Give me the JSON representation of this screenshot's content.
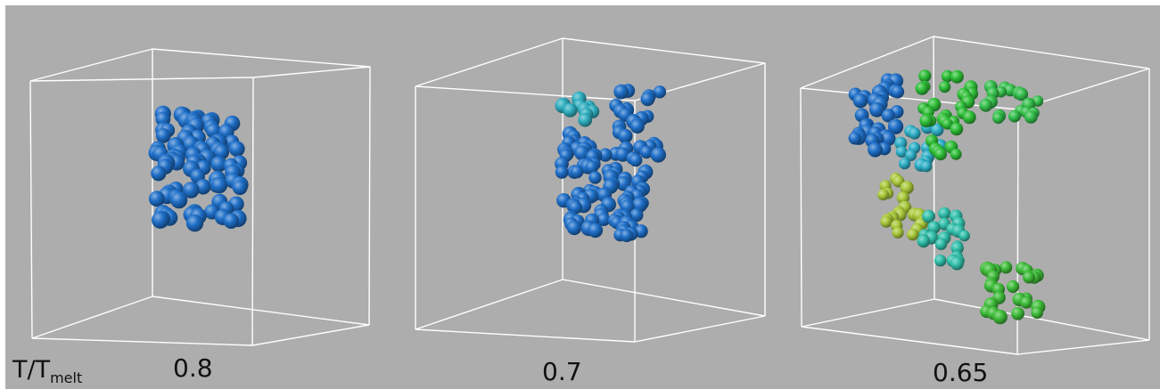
{
  "figure": {
    "temperature_label_main": "T/T",
    "temperature_label_sub": "melt",
    "background_color": "#adadad",
    "box_line_color": "#ffffff",
    "panels": [
      {
        "value_label": "0.8",
        "clusters": [
          {
            "color": "#1f6fc8"
          }
        ]
      },
      {
        "value_label": "0.7",
        "clusters": [
          {
            "color": "#2faebf"
          },
          {
            "color": "#1f6fc8"
          }
        ]
      },
      {
        "value_label": "0.65",
        "clusters": [
          {
            "color": "#1f6fc8"
          },
          {
            "color": "#2fb0c8"
          },
          {
            "color": "#2fbf38"
          },
          {
            "color": "#35bf4c"
          },
          {
            "color": "#a9c93a"
          },
          {
            "color": "#32c0ab"
          },
          {
            "color": "#3fbd3a"
          }
        ]
      }
    ]
  }
}
